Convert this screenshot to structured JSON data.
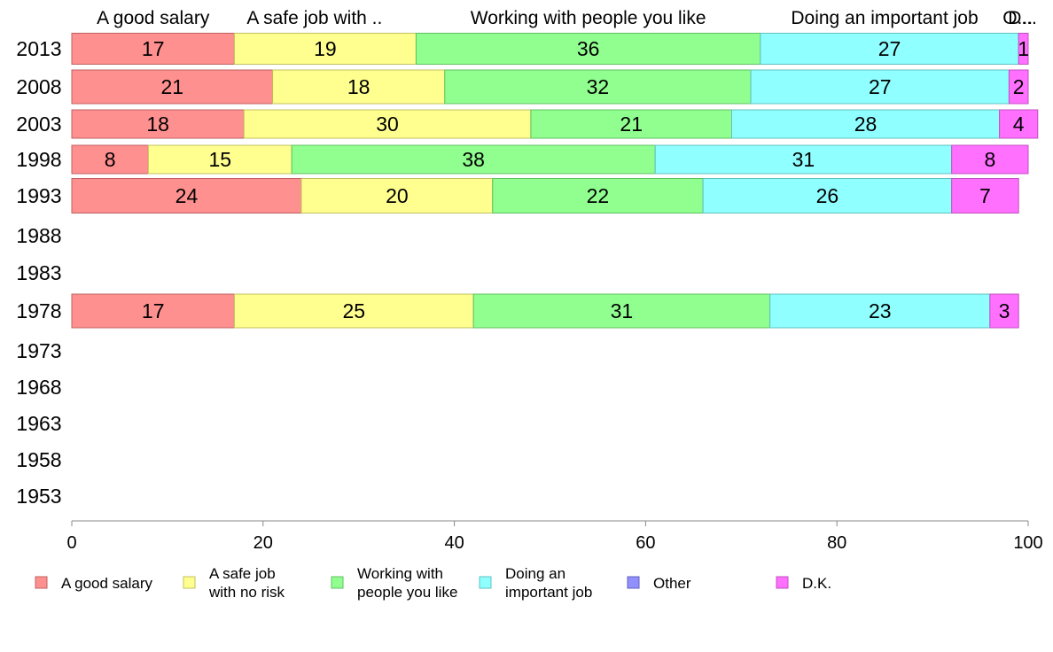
{
  "chart_data": {
    "type": "bar",
    "orientation": "horizontal",
    "stacked": true,
    "categories": [
      "2013",
      "2008",
      "2003",
      "1998",
      "1993",
      "1988",
      "1983",
      "1978",
      "1973",
      "1968",
      "1963",
      "1958",
      "1953"
    ],
    "series": [
      {
        "name": "A good salary",
        "legend_label": [
          "A good salary"
        ],
        "top_label": "A good salary",
        "color": "#ff9090",
        "edge": "#c06060",
        "values": [
          17,
          21,
          18,
          8,
          24,
          null,
          null,
          17,
          null,
          null,
          null,
          null,
          null
        ]
      },
      {
        "name": "A safe job with no risk",
        "legend_label": [
          "A safe job",
          "with no risk"
        ],
        "top_label": "A safe job with ..",
        "color": "#ffff90",
        "edge": "#c0c060",
        "values": [
          19,
          18,
          30,
          15,
          20,
          null,
          null,
          25,
          null,
          null,
          null,
          null,
          null
        ]
      },
      {
        "name": "Working with people you like",
        "legend_label": [
          "Working with",
          "people you like"
        ],
        "top_label": "Working with people you like",
        "color": "#90ff90",
        "edge": "#60c060",
        "values": [
          36,
          32,
          21,
          38,
          22,
          null,
          null,
          31,
          null,
          null,
          null,
          null,
          null
        ]
      },
      {
        "name": "Doing an important job",
        "legend_label": [
          "Doing an",
          "important job"
        ],
        "top_label": "Doing an important job",
        "color": "#90ffff",
        "edge": "#60c0c0",
        "values": [
          27,
          27,
          28,
          31,
          26,
          null,
          null,
          23,
          null,
          null,
          null,
          null,
          null
        ]
      },
      {
        "name": "Other",
        "legend_label": [
          "Other"
        ],
        "top_label": "O...",
        "color": "#9090ff",
        "edge": "#6060c0",
        "values": [
          0,
          0,
          0,
          0,
          0,
          null,
          null,
          0,
          null,
          null,
          null,
          null,
          null
        ]
      },
      {
        "name": "D.K.",
        "legend_label": [
          "D.K."
        ],
        "top_label": "D...",
        "color": "#ff70ff",
        "edge": "#c050c0",
        "values": [
          1,
          2,
          4,
          8,
          7,
          null,
          null,
          3,
          null,
          null,
          null,
          null,
          null
        ]
      }
    ],
    "xlim": [
      0,
      100
    ],
    "xticks": [
      0,
      20,
      40,
      60,
      80,
      100
    ],
    "xlabel": "",
    "ylabel": "",
    "grid": false,
    "legend_position": "bottom"
  }
}
